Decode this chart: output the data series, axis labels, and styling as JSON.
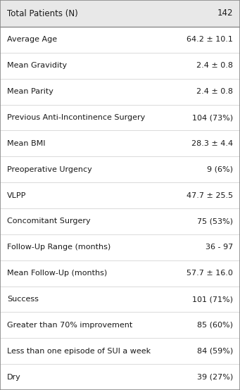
{
  "header_label": "Total Patients (N)",
  "header_value": "142",
  "rows": [
    [
      "Average Age",
      "64.2 ± 10.1"
    ],
    [
      "Mean Gravidity",
      "2.4 ± 0.8"
    ],
    [
      "Mean Parity",
      "2.4 ± 0.8"
    ],
    [
      "Previous Anti-Incontinence Surgery",
      "104 (73%)"
    ],
    [
      "Mean BMI",
      "28.3 ± 4.4"
    ],
    [
      "Preoperative Urgency",
      "9 (6%)"
    ],
    [
      "VLPP",
      "47.7 ± 25.5"
    ],
    [
      "Concomitant Surgery",
      "75 (53%)"
    ],
    [
      "Follow-Up Range (months)",
      "36 - 97"
    ],
    [
      "Mean Follow-Up (months)",
      "57.7 ± 16.0"
    ],
    [
      "Success",
      "101 (71%)"
    ],
    [
      "Greater than 70% improvement",
      "85 (60%)"
    ],
    [
      "Less than one episode of SUI a week",
      "84 (59%)"
    ],
    [
      "Dry",
      "39 (27%)"
    ]
  ],
  "header_bg": "#e8e8e8",
  "row_bg": "#ffffff",
  "text_color": "#1a1a1a",
  "font_size": 8.0,
  "header_font_size": 8.5,
  "fig_width": 3.41,
  "fig_height": 5.54,
  "dpi": 100,
  "border_color": "#888888",
  "separator_color": "#cccccc",
  "header_line_color": "#888888"
}
